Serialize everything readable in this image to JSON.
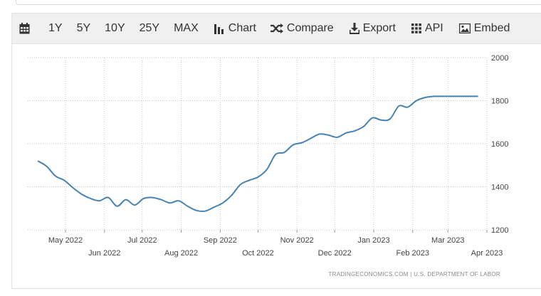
{
  "toolbar": {
    "calendar_icon": "calendar-icon",
    "ranges": [
      "1Y",
      "5Y",
      "10Y",
      "25Y",
      "MAX"
    ],
    "tools": [
      {
        "name": "chart",
        "label": "Chart",
        "icon": "bar-chart-icon"
      },
      {
        "name": "compare",
        "label": "Compare",
        "icon": "shuffle-icon"
      },
      {
        "name": "export",
        "label": "Export",
        "icon": "download-icon"
      },
      {
        "name": "api",
        "label": "API",
        "icon": "grid-icon"
      },
      {
        "name": "embed",
        "label": "Embed",
        "icon": "image-icon"
      }
    ]
  },
  "source": "TRADINGECONOMICS.COM  |  U.S. DEPARTMENT OF LABOR",
  "colors": {
    "line": "#4682b4",
    "toolbar_bg": "#f0f0f0",
    "grid": "#c8c8c8"
  },
  "chart_data": {
    "type": "line",
    "ylim": [
      1200,
      2000
    ],
    "yticks": [
      1200,
      1400,
      1600,
      1800,
      2000
    ],
    "xlim": [
      "2022-04-01",
      "2023-04-01"
    ],
    "xticks": [
      {
        "date": "2022-05-01",
        "label": "May 2022",
        "row": 1
      },
      {
        "date": "2022-06-01",
        "label": "Jun 2022",
        "row": 2
      },
      {
        "date": "2022-07-01",
        "label": "Jul 2022",
        "row": 1
      },
      {
        "date": "2022-08-01",
        "label": "Aug 2022",
        "row": 2
      },
      {
        "date": "2022-09-01",
        "label": "Sep 2022",
        "row": 1
      },
      {
        "date": "2022-10-01",
        "label": "Oct 2022",
        "row": 2
      },
      {
        "date": "2022-11-01",
        "label": "Nov 2022",
        "row": 1
      },
      {
        "date": "2022-12-01",
        "label": "Dec 2022",
        "row": 2
      },
      {
        "date": "2023-01-01",
        "label": "Jan 2023",
        "row": 1
      },
      {
        "date": "2023-02-01",
        "label": "Feb 2023",
        "row": 2
      },
      {
        "date": "2023-03-01",
        "label": "Mar 2023",
        "row": 1
      },
      {
        "date": "2023-04-01",
        "label": "Apr 2023",
        "row": 2
      }
    ],
    "grid": true,
    "series": [
      {
        "x": [
          "2022-04-09",
          "2022-04-16",
          "2022-04-23",
          "2022-04-30",
          "2022-05-07",
          "2022-05-14",
          "2022-05-21",
          "2022-05-28",
          "2022-06-04",
          "2022-06-11",
          "2022-06-18",
          "2022-06-25",
          "2022-07-02",
          "2022-07-09",
          "2022-07-16",
          "2022-07-23",
          "2022-07-30",
          "2022-08-06",
          "2022-08-13",
          "2022-08-20",
          "2022-08-27",
          "2022-09-03",
          "2022-09-10",
          "2022-09-17",
          "2022-09-24",
          "2022-10-01",
          "2022-10-08",
          "2022-10-15",
          "2022-10-22",
          "2022-10-29",
          "2022-11-05",
          "2022-11-12",
          "2022-11-19",
          "2022-11-26",
          "2022-12-03",
          "2022-12-10",
          "2022-12-17",
          "2022-12-24",
          "2022-12-31",
          "2023-01-07",
          "2023-01-14",
          "2023-01-21",
          "2023-01-28",
          "2023-02-04",
          "2023-02-11",
          "2023-02-18",
          "2023-02-25",
          "2023-03-04",
          "2023-03-11",
          "2023-03-18",
          "2023-03-25"
        ],
        "values": [
          1520,
          1495,
          1450,
          1430,
          1395,
          1365,
          1345,
          1335,
          1350,
          1310,
          1340,
          1315,
          1345,
          1350,
          1340,
          1325,
          1335,
          1310,
          1290,
          1287,
          1305,
          1325,
          1360,
          1410,
          1430,
          1445,
          1480,
          1550,
          1560,
          1595,
          1605,
          1625,
          1645,
          1640,
          1630,
          1650,
          1660,
          1680,
          1720,
          1710,
          1715,
          1775,
          1770,
          1800,
          1815,
          1820,
          1820,
          1820,
          1820,
          1820,
          1820
        ]
      }
    ]
  }
}
